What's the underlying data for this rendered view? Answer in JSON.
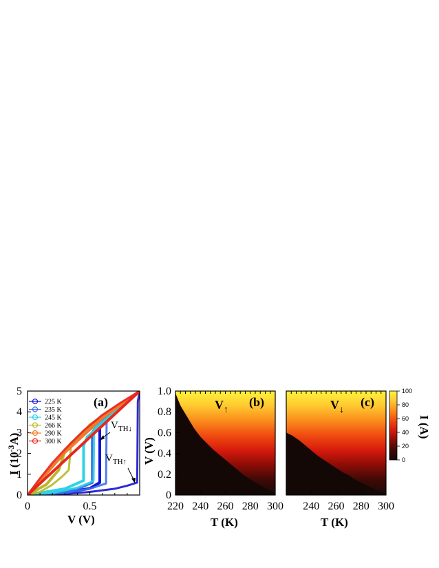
{
  "chart_data": [
    {
      "panel": "(a)",
      "type": "line",
      "xlabel": "V (V)",
      "ylabel_main": "I (10",
      "ylabel_exp": "-3",
      "ylabel_tail": "A)",
      "xlim": [
        0,
        0.9
      ],
      "ylim": [
        0,
        5
      ],
      "xticks": [
        0,
        0.5
      ],
      "yticks": [
        0,
        1,
        2,
        3,
        4,
        5
      ],
      "annotations": {
        "vth_down": {
          "main": "V",
          "sub": "TH↓"
        },
        "vth_up": {
          "main": "V",
          "sub": "TH↑"
        }
      },
      "series": [
        {
          "name": "225 K",
          "color": "#1414d2",
          "up": [
            [
              0,
              0
            ],
            [
              0.3,
              0.05
            ],
            [
              0.5,
              0.15
            ],
            [
              0.7,
              0.3
            ],
            [
              0.8,
              0.45
            ],
            [
              0.87,
              0.58
            ],
            [
              0.88,
              0.6
            ],
            [
              0.885,
              4.5
            ],
            [
              0.9,
              5.0
            ]
          ],
          "down": [
            [
              0.9,
              5.0
            ],
            [
              0.75,
              4.3
            ],
            [
              0.6,
              3.6
            ],
            [
              0.58,
              3.35
            ],
            [
              0.58,
              0.6
            ],
            [
              0.5,
              0.32
            ],
            [
              0.3,
              0.1
            ],
            [
              0,
              0
            ]
          ]
        },
        {
          "name": "235 K",
          "color": "#3d6fe8",
          "up": [
            [
              0,
              0
            ],
            [
              0.3,
              0.1
            ],
            [
              0.5,
              0.3
            ],
            [
              0.6,
              0.5
            ],
            [
              0.63,
              0.55
            ],
            [
              0.635,
              3.7
            ],
            [
              0.9,
              5.0
            ]
          ],
          "down": [
            [
              0.9,
              5.0
            ],
            [
              0.65,
              3.8
            ],
            [
              0.55,
              3.3
            ],
            [
              0.52,
              3.0
            ],
            [
              0.52,
              0.6
            ],
            [
              0.4,
              0.3
            ],
            [
              0.2,
              0.07
            ],
            [
              0,
              0
            ]
          ]
        },
        {
          "name": "245 K",
          "color": "#2fd3e6",
          "up": [
            [
              0,
              0
            ],
            [
              0.2,
              0.1
            ],
            [
              0.4,
              0.35
            ],
            [
              0.5,
              0.6
            ],
            [
              0.53,
              0.7
            ],
            [
              0.535,
              3.2
            ],
            [
              0.9,
              5.0
            ]
          ],
          "down": [
            [
              0.9,
              5.0
            ],
            [
              0.6,
              3.4
            ],
            [
              0.48,
              2.8
            ],
            [
              0.45,
              2.4
            ],
            [
              0.45,
              0.7
            ],
            [
              0.3,
              0.3
            ],
            [
              0,
              0
            ]
          ]
        },
        {
          "name": "266 K",
          "color": "#b8b72a",
          "up": [
            [
              0,
              0
            ],
            [
              0.1,
              0.15
            ],
            [
              0.2,
              0.5
            ],
            [
              0.28,
              0.9
            ],
            [
              0.33,
              1.2
            ],
            [
              0.35,
              2.4
            ],
            [
              0.5,
              3.4
            ],
            [
              0.9,
              5.0
            ]
          ],
          "down": [
            [
              0.9,
              5.0
            ],
            [
              0.5,
              3.3
            ],
            [
              0.35,
              2.5
            ],
            [
              0.3,
              2.1
            ],
            [
              0.25,
              1.2
            ],
            [
              0.15,
              0.5
            ],
            [
              0,
              0
            ]
          ]
        },
        {
          "name": "290 K",
          "color": "#f07a2a",
          "up": [
            [
              0,
              0
            ],
            [
              0.1,
              0.75
            ],
            [
              0.2,
              1.45
            ],
            [
              0.3,
              2.1
            ],
            [
              0.45,
              3.0
            ],
            [
              0.6,
              3.8
            ],
            [
              0.75,
              4.4
            ],
            [
              0.9,
              5.0
            ]
          ],
          "down": [
            [
              0.9,
              5.0
            ],
            [
              0.6,
              3.7
            ],
            [
              0.3,
              2.05
            ],
            [
              0,
              0
            ]
          ]
        },
        {
          "name": "300 K",
          "color": "#e8261e",
          "up": [
            [
              0,
              0
            ],
            [
              0.1,
              0.8
            ],
            [
              0.2,
              1.55
            ],
            [
              0.3,
              2.2
            ],
            [
              0.45,
              3.1
            ],
            [
              0.6,
              3.85
            ],
            [
              0.75,
              4.45
            ],
            [
              0.9,
              5.0
            ]
          ],
          "down": [
            [
              0.9,
              5.0
            ],
            [
              0,
              0
            ]
          ]
        }
      ]
    },
    {
      "panel": "(b)",
      "type": "heatmap",
      "sweep_label": {
        "main": "V",
        "sub": "↑"
      },
      "xlabel": "T (K)",
      "ylabel": "V (V)",
      "xlim": [
        220,
        300
      ],
      "ylim": [
        0,
        1.0
      ],
      "xticks": [
        220,
        240,
        260,
        280,
        300
      ],
      "yticks": [
        0,
        0.2,
        0.4,
        0.6,
        0.8,
        1.0
      ],
      "threshold_curve": [
        [
          220,
          0.98
        ],
        [
          222,
          0.92
        ],
        [
          224,
          0.86
        ],
        [
          226,
          0.82
        ],
        [
          228,
          0.78
        ],
        [
          230,
          0.74
        ],
        [
          235,
          0.64
        ],
        [
          240,
          0.56
        ],
        [
          245,
          0.5
        ],
        [
          250,
          0.44
        ],
        [
          255,
          0.39
        ],
        [
          260,
          0.34
        ],
        [
          265,
          0.29
        ],
        [
          270,
          0.24
        ],
        [
          275,
          0.19
        ],
        [
          280,
          0.15
        ],
        [
          290,
          0.08
        ],
        [
          300,
          0.02
        ]
      ]
    },
    {
      "panel": "(c)",
      "type": "heatmap",
      "sweep_label": {
        "main": "V",
        "sub": "↓"
      },
      "xlabel": "T (K)",
      "xlim": [
        220,
        300
      ],
      "ylim": [
        0,
        1.0
      ],
      "xticks": [
        240,
        260,
        280,
        300
      ],
      "threshold_curve": [
        [
          220,
          0.6
        ],
        [
          225,
          0.57
        ],
        [
          230,
          0.53
        ],
        [
          235,
          0.48
        ],
        [
          240,
          0.43
        ],
        [
          245,
          0.38
        ],
        [
          250,
          0.34
        ],
        [
          255,
          0.3
        ],
        [
          260,
          0.26
        ],
        [
          265,
          0.22
        ],
        [
          270,
          0.19
        ],
        [
          275,
          0.15
        ],
        [
          280,
          0.12
        ],
        [
          290,
          0.06
        ],
        [
          300,
          0.01
        ]
      ]
    },
    {
      "type": "colorbar",
      "label": "I (A)",
      "ticks": [
        0,
        20,
        40,
        60,
        80,
        100
      ],
      "range": [
        0,
        100
      ],
      "colors": [
        "#1a0a08",
        "#3d0a06",
        "#8a0c06",
        "#d51a0c",
        "#f04a10",
        "#fa8c1c",
        "#ffc830",
        "#fff23c"
      ]
    }
  ]
}
